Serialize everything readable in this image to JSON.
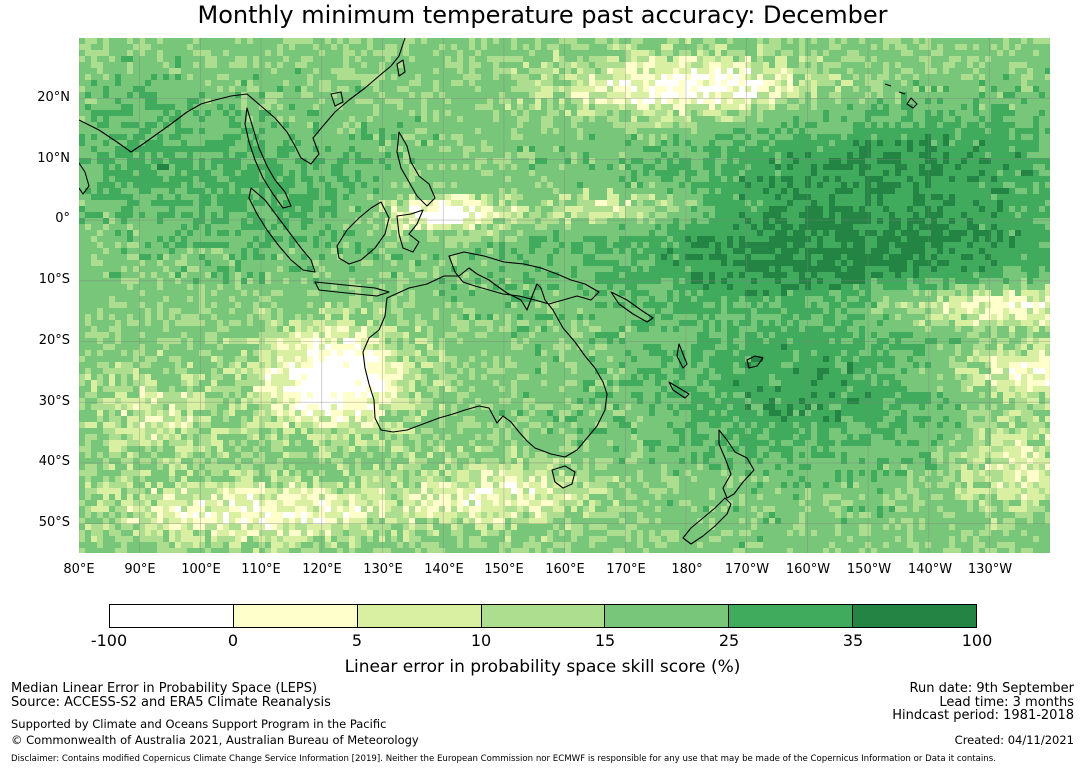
{
  "title": "Monthly minimum temperature past accuracy: December",
  "map": {
    "lat_labels": [
      "20°N",
      "10°N",
      "0°",
      "10°S",
      "20°S",
      "30°S",
      "40°S",
      "50°S"
    ],
    "lon_labels": [
      "80°E",
      "90°E",
      "100°E",
      "110°E",
      "120°E",
      "130°E",
      "140°E",
      "150°E",
      "160°E",
      "170°E",
      "180°",
      "170°W",
      "160°W",
      "150°W",
      "140°W",
      "130°W"
    ]
  },
  "colorbar": {
    "ticks": [
      "-100",
      "0",
      "5",
      "10",
      "15",
      "25",
      "35",
      "100"
    ],
    "colors": [
      "#ffffff",
      "#ffffcc",
      "#d9f0a3",
      "#addd8e",
      "#78c679",
      "#41ab5d",
      "#238443"
    ],
    "label": "Linear error in probability space skill score (%)"
  },
  "footer": {
    "method": "Median Linear Error in Probability Space (LEPS)",
    "source": "Source: ACCESS-S2 and ERA5 Climate Reanalysis",
    "support": "Supported by Climate and Oceans Support Program in the Pacific",
    "copyright": "© Commonwealth of Australia 2021, Australian Bureau of Meteorology",
    "run_date": "Run date: 9th September",
    "lead_time": "Lead time: 3 months",
    "hindcast": "Hindcast period: 1981-2018",
    "created": "Created: 04/11/2021",
    "disclaimer": "Disclaimer: Contains modified Copernicus Climate Change Service Information [2019]. Neither the European Commission nor ECMWF is responsible for any use that may be made of the Copernicus Information or Data it contains."
  }
}
